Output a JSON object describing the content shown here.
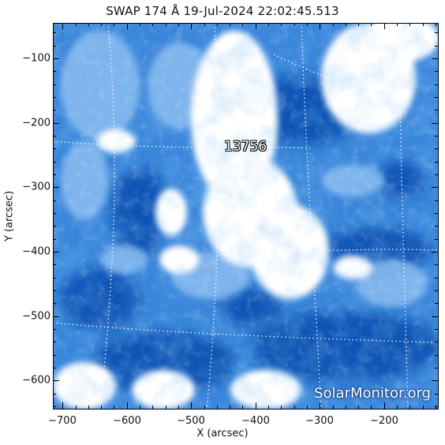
{
  "title": "SWAP 174 Å 19-Jul-2024 22:02:45.513",
  "x_axis": {
    "label": "X (arcsec)",
    "ticks": [
      "−700",
      "−600",
      "−500",
      "−400",
      "−300",
      "−200"
    ],
    "tick_values": [
      -700,
      -600,
      -500,
      -400,
      -300,
      -200
    ],
    "range": [
      -715,
      -115
    ]
  },
  "y_axis": {
    "label": "Y (arcsec)",
    "ticks": [
      "−100",
      "−200",
      "−300",
      "−400",
      "−500",
      "−600"
    ],
    "tick_values": [
      -100,
      -200,
      -300,
      -400,
      -500,
      -600
    ],
    "range": [
      -645,
      -45
    ]
  },
  "active_region": {
    "number": "13756"
  },
  "watermark": "SolarMonitor.org",
  "image": {
    "type": "solar EUV image",
    "colormap": [
      "#0a4fb0",
      "#2f7fd6",
      "#7fb6ee",
      "#ffffff"
    ]
  }
}
